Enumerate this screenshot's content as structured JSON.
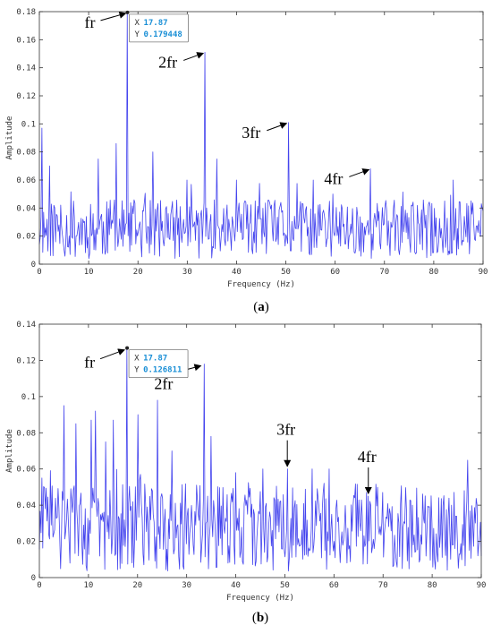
{
  "colors": {
    "line": "#4444ee",
    "axis": "#333333",
    "datatip_value": "#1a8fd6",
    "arrow": "#000000"
  },
  "chart_data": [
    {
      "type": "line",
      "xlabel": "Frequency (Hz)",
      "ylabel": "Amplitude",
      "xlim": [
        0,
        90
      ],
      "ylim": [
        0,
        0.18
      ],
      "xticks": [
        0,
        10,
        20,
        30,
        40,
        50,
        60,
        70,
        80,
        90
      ],
      "yticks": [
        0,
        0.02,
        0.04,
        0.06,
        0.08,
        0.1,
        0.12,
        0.14,
        0.16,
        0.18
      ],
      "ytick_labels": [
        "0",
        "0.02",
        "0.04",
        "0.06",
        "0.08",
        "0.1",
        "0.12",
        "0.14",
        "0.16",
        "0.18"
      ],
      "grid": false,
      "noise": {
        "seed": 11,
        "base": 0.025,
        "spread": 0.03,
        "peaks": [
          [
            0.5,
            0.097
          ],
          [
            2,
            0.07
          ],
          [
            12,
            0.075
          ],
          [
            15.5,
            0.086
          ],
          [
            23,
            0.08
          ],
          [
            30,
            0.06
          ],
          [
            36,
            0.075
          ],
          [
            40,
            0.06
          ],
          [
            55.5,
            0.06
          ],
          [
            59.5,
            0.05
          ],
          [
            84,
            0.06
          ]
        ]
      },
      "peaks": [
        {
          "x": 17.87,
          "y": 0.179448,
          "label": "fr"
        },
        {
          "x": 33.6,
          "y": 0.151,
          "label": "2fr"
        },
        {
          "x": 50.5,
          "y": 0.101,
          "label": "3fr"
        },
        {
          "x": 67.2,
          "y": 0.068,
          "label": "4fr"
        }
      ],
      "datatip": {
        "x_key": "X",
        "x_value": "17.87",
        "y_key": "Y",
        "y_value": "0.179448"
      },
      "caption": "a"
    },
    {
      "type": "line",
      "xlabel": "Frequency (Hz)",
      "ylabel": "Amplitude",
      "xlim": [
        0,
        90
      ],
      "ylim": [
        0,
        0.14
      ],
      "xticks": [
        0,
        10,
        20,
        30,
        40,
        50,
        60,
        70,
        80,
        90
      ],
      "yticks": [
        0,
        0.02,
        0.04,
        0.06,
        0.08,
        0.1,
        0.12,
        0.14
      ],
      "ytick_labels": [
        "0",
        "0.02",
        "0.04",
        "0.06",
        "0.08",
        "0.1",
        "0.12",
        "0.14"
      ],
      "grid": false,
      "noise": {
        "seed": 29,
        "base": 0.028,
        "spread": 0.035,
        "peaks": [
          [
            0.5,
            0.055
          ],
          [
            5,
            0.095
          ],
          [
            7.5,
            0.085
          ],
          [
            10.5,
            0.087
          ],
          [
            11.5,
            0.092
          ],
          [
            13.5,
            0.075
          ],
          [
            15,
            0.087
          ],
          [
            20,
            0.09
          ],
          [
            24,
            0.098
          ],
          [
            27,
            0.07
          ],
          [
            35,
            0.078
          ],
          [
            40,
            0.058
          ],
          [
            45.5,
            0.06
          ],
          [
            55.5,
            0.06
          ],
          [
            59,
            0.06
          ],
          [
            76,
            0.04
          ],
          [
            84,
            0.04
          ]
        ]
      },
      "peaks": [
        {
          "x": 17.87,
          "y": 0.126811,
          "label": "fr"
        },
        {
          "x": 33.6,
          "y": 0.118,
          "label": "2fr"
        },
        {
          "x": 50.5,
          "y": 0.06,
          "label": "3fr"
        },
        {
          "x": 67.0,
          "y": 0.045,
          "label": "4fr"
        }
      ],
      "datatip": {
        "x_key": "X",
        "x_value": "17.87",
        "y_key": "Y",
        "y_value": "0.126811"
      },
      "caption": "b"
    }
  ]
}
